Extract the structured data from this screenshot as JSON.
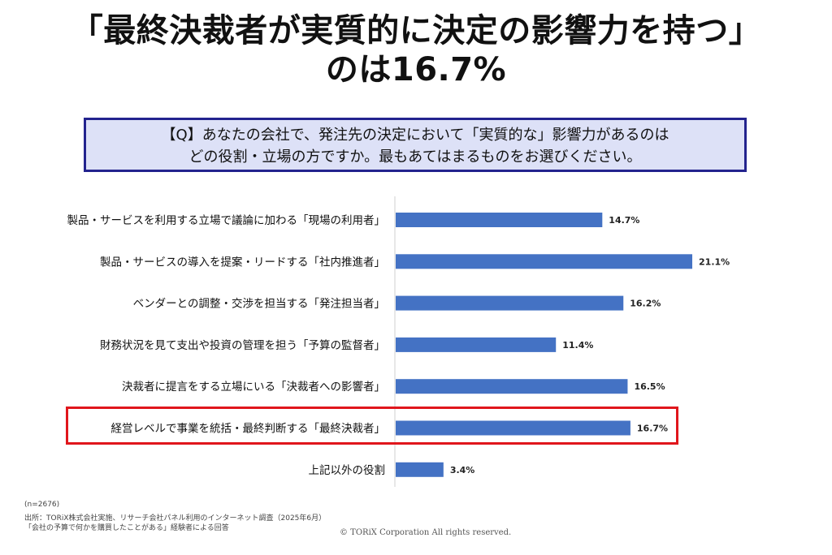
{
  "title_line1": "「最終決裁者が実質的に決定の影響力を持つ」",
  "title_line2": "のは16.7%",
  "question_line1": "【Q】あなたの会社で、発注先の決定において「実質的な」影響力があるのは",
  "question_line2": "どの役割・立場の方ですか。最も​あてはまるものをお選びください。",
  "footer": {
    "n": "(n=2676)",
    "source": "出所：TORiX株式会社実施、リサーチ会社パネル利用のインターネット調査（2025年6月）",
    "respondents": "「会社の予算で何かを購買したことがある」経験者による回答",
    "copyright": "© TORiX Corporation All rights reserved."
  },
  "colors": {
    "bar": "#4472c4",
    "highlight": "#e0161c",
    "question_bg": "#dde1f7",
    "question_border": "#23238e"
  },
  "chart_data": {
    "type": "bar",
    "orientation": "horizontal",
    "categories": [
      "製品・サービスを利用する立場で議論に加わる「現場の利用者」",
      "製品・サービスの導入を提案・リードする「社内推進者」",
      "ベンダーとの調整・交渉を担当する「発注担当者」",
      "財務状況を見て支出や投資の管理を担う「予算の監督者」",
      "決裁者に提言をする立場にいる「決裁者への影響者」",
      "経営レベルで事業を統括・最終判断する「最終決裁者」",
      "上記以外の役割"
    ],
    "values": [
      14.7,
      21.1,
      16.2,
      11.4,
      16.5,
      16.7,
      3.4
    ],
    "value_labels": [
      "14.7%",
      "21.1%",
      "16.2%",
      "11.4%",
      "16.5%",
      "16.7%",
      "3.4%"
    ],
    "highlighted_category": "経営レベルで事業を統括・最終判断する「最終決裁者」",
    "grid": false,
    "legend": "none"
  }
}
